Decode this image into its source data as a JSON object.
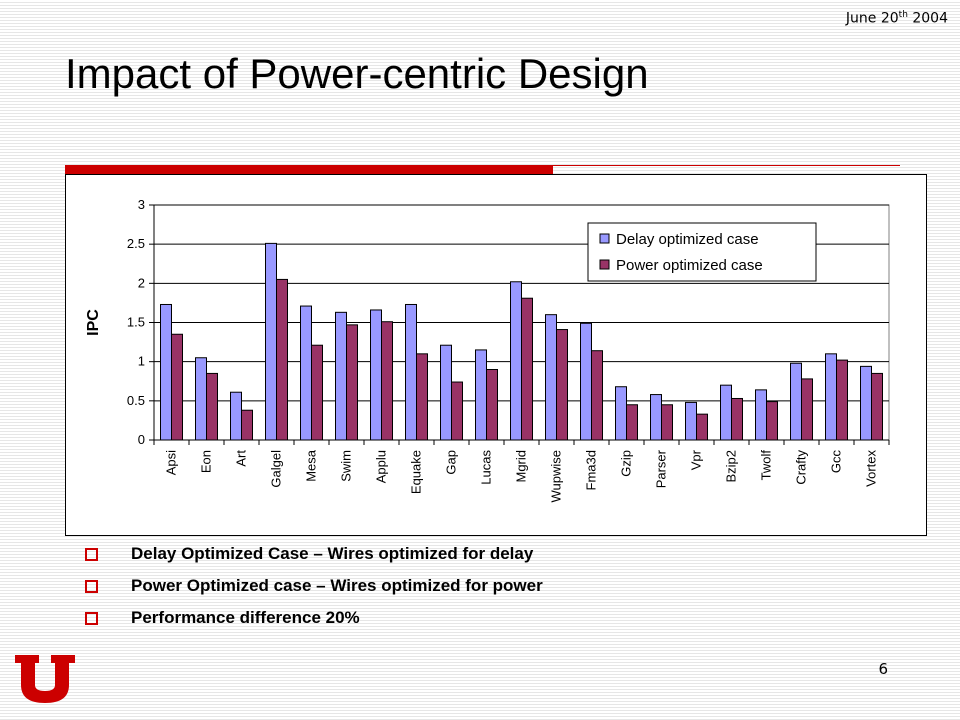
{
  "slide": {
    "date": "June 20",
    "date_sup": "th",
    "date_year": "2004",
    "title": "Impact of Power-centric Design",
    "page_number": "6",
    "bullets": [
      "Delay Optimized Case – Wires optimized for delay",
      "Power Optimized case – Wires optimized for power",
      "Performance difference 20%"
    ]
  },
  "colors": {
    "accent_red": "#cc0000",
    "series_delay": "#9999ff",
    "series_power": "#993366"
  },
  "chart_data": {
    "type": "bar",
    "ylabel": "IPC",
    "xlabel": "",
    "ylim": [
      0,
      3
    ],
    "yticks": [
      0,
      0.5,
      1,
      1.5,
      2,
      2.5,
      3
    ],
    "ytick_labels": [
      "0",
      "0.5",
      "1",
      "1.5",
      "2",
      "2.5",
      "3"
    ],
    "grid": true,
    "legend_position": "top-right",
    "categories": [
      "Apsi",
      "Eon",
      "Art",
      "Galgel",
      "Mesa",
      "Swim",
      "Applu",
      "Equake",
      "Gap",
      "Lucas",
      "Mgrid",
      "Wupwise",
      "Fma3d",
      "Gzip",
      "Parser",
      "Vpr",
      "Bzip2",
      "Twolf",
      "Crafty",
      "Gcc",
      "Vortex"
    ],
    "series": [
      {
        "name": "Delay optimized case",
        "color": "#9999ff",
        "values": [
          1.73,
          1.05,
          0.61,
          2.51,
          1.71,
          1.63,
          1.66,
          1.73,
          1.21,
          1.15,
          2.02,
          1.6,
          1.49,
          0.68,
          0.58,
          0.48,
          0.7,
          0.64,
          0.98,
          1.1,
          0.94
        ]
      },
      {
        "name": "Power optimized case",
        "color": "#993366",
        "values": [
          1.35,
          0.85,
          0.38,
          2.05,
          1.21,
          1.47,
          1.51,
          1.1,
          0.74,
          0.9,
          1.81,
          1.41,
          1.14,
          0.45,
          0.45,
          0.33,
          0.53,
          0.49,
          0.78,
          1.02,
          0.85
        ]
      }
    ]
  }
}
